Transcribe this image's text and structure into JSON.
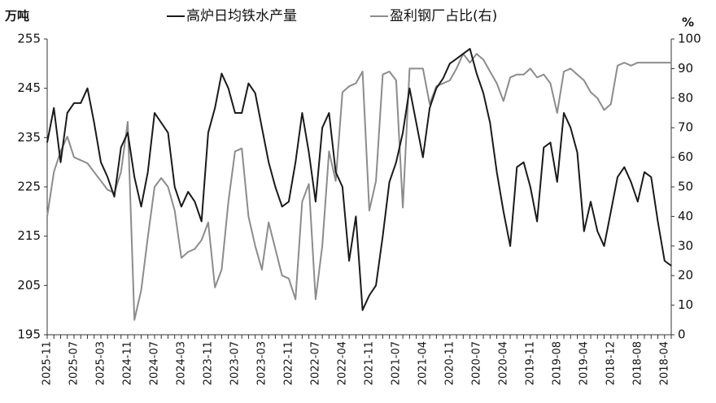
{
  "chart_data": {
    "type": "line",
    "y_label": "万吨",
    "y2_label": "%",
    "categories": [
      "2025-11",
      null,
      null,
      null,
      "2025-07",
      null,
      null,
      null,
      "2025-03",
      null,
      null,
      null,
      "2024-11",
      null,
      null,
      null,
      "2024-07",
      null,
      null,
      null,
      "2024-03",
      null,
      null,
      null,
      "2023-11",
      null,
      null,
      null,
      "2023-07",
      null,
      null,
      null,
      "2023-03",
      null,
      null,
      null,
      "2022-11",
      null,
      null,
      null,
      "2022-07",
      null,
      null,
      null,
      "2022-04",
      null,
      null,
      null,
      "2021-11",
      null,
      null,
      null,
      "2021-07",
      null,
      null,
      null,
      "2021-04",
      null,
      null,
      null,
      "2020-11",
      null,
      null,
      null,
      "2020-07",
      null,
      null,
      null,
      "2020-04",
      null,
      null,
      null,
      "2019-11",
      null,
      null,
      null,
      "2019-08",
      null,
      null,
      null,
      "2019-04",
      null,
      null,
      null,
      "2018-12",
      null,
      null,
      null,
      "2018-08",
      null,
      null,
      null,
      "2018-04",
      null
    ],
    "series": [
      {
        "name": "高炉日均铁水产量",
        "color": "#1a1a1a",
        "values": [
          234,
          241,
          230,
          240,
          242,
          242,
          245,
          238,
          230,
          227,
          223,
          233,
          236,
          227,
          221,
          228,
          240,
          238,
          236,
          225,
          221,
          224,
          222,
          218,
          236,
          241,
          248,
          245,
          240,
          240,
          246,
          244,
          237,
          230,
          225,
          221,
          222,
          230,
          240,
          232,
          222,
          237,
          240,
          228,
          225,
          210,
          219,
          200,
          203,
          205,
          215,
          226,
          230,
          236,
          245,
          238,
          231,
          241,
          245,
          247,
          250,
          251,
          252,
          253,
          248,
          244,
          238,
          228,
          220,
          213,
          229,
          230,
          225,
          218,
          233,
          234,
          226,
          240,
          237,
          232,
          216,
          222,
          216,
          213,
          220,
          227,
          229,
          226,
          222,
          228,
          227,
          218,
          210,
          209
        ]
      },
      {
        "name": "盈利钢厂占比(右)",
        "color": "#8c8c8c",
        "axis": "y2",
        "values": [
          40,
          55,
          62,
          67,
          60,
          59,
          58,
          55,
          52,
          49,
          48,
          55,
          72,
          5,
          15,
          33,
          50,
          53,
          50,
          42,
          26,
          28,
          29,
          32,
          38,
          16,
          22,
          45,
          62,
          63,
          40,
          30,
          22,
          38,
          29,
          20,
          19,
          12,
          45,
          51,
          12,
          30,
          62,
          52,
          82,
          84,
          85,
          89,
          42,
          52,
          88,
          89,
          86,
          43,
          90,
          90,
          90,
          78,
          84,
          85,
          86,
          90,
          95,
          92,
          95,
          93,
          89,
          85,
          79,
          87,
          88,
          88,
          90,
          87,
          88,
          85,
          75,
          89,
          90,
          88,
          86,
          82,
          80,
          76,
          78,
          91,
          92,
          91,
          92,
          92,
          92,
          92,
          92,
          92
        ]
      }
    ],
    "ylim": [
      195,
      255
    ],
    "yticks": [
      195,
      205,
      215,
      225,
      235,
      245,
      255
    ],
    "y2lim": [
      0,
      100
    ],
    "y2ticks": [
      0,
      10,
      20,
      30,
      40,
      50,
      60,
      70,
      80,
      90,
      100
    ],
    "grid": false,
    "legend": "top"
  }
}
